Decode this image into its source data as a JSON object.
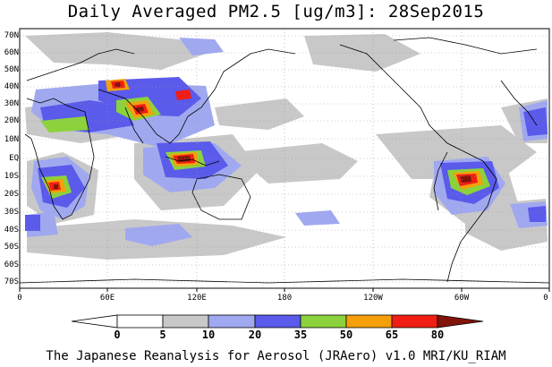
{
  "title": "Daily Averaged PM2.5 [ug/m3]: 28Sep2015",
  "footer": "The Japanese Reanalysis for Aerosol (JRAero) v1.0 MRI/KU_RIAM",
  "lat_labels": [
    "70N",
    "60N",
    "50N",
    "40N",
    "30N",
    "20N",
    "10N",
    "EQ",
    "10S",
    "20S",
    "30S",
    "40S",
    "50S",
    "60S",
    "70S"
  ],
  "lon_labels": [
    "0",
    "60E",
    "120E",
    "180",
    "120W",
    "60W",
    "0"
  ],
  "colorbar": {
    "ticks": [
      "0",
      "5",
      "10",
      "20",
      "35",
      "50",
      "65",
      "80"
    ],
    "colors": [
      "#ffffff",
      "#c8c8c8",
      "#a0a8f0",
      "#5a5aeb",
      "#8cd23c",
      "#f5a00a",
      "#f01e14",
      "#82140a"
    ]
  },
  "colors": {
    "land_outline": "#000000",
    "grid": "#9a9a9a"
  }
}
